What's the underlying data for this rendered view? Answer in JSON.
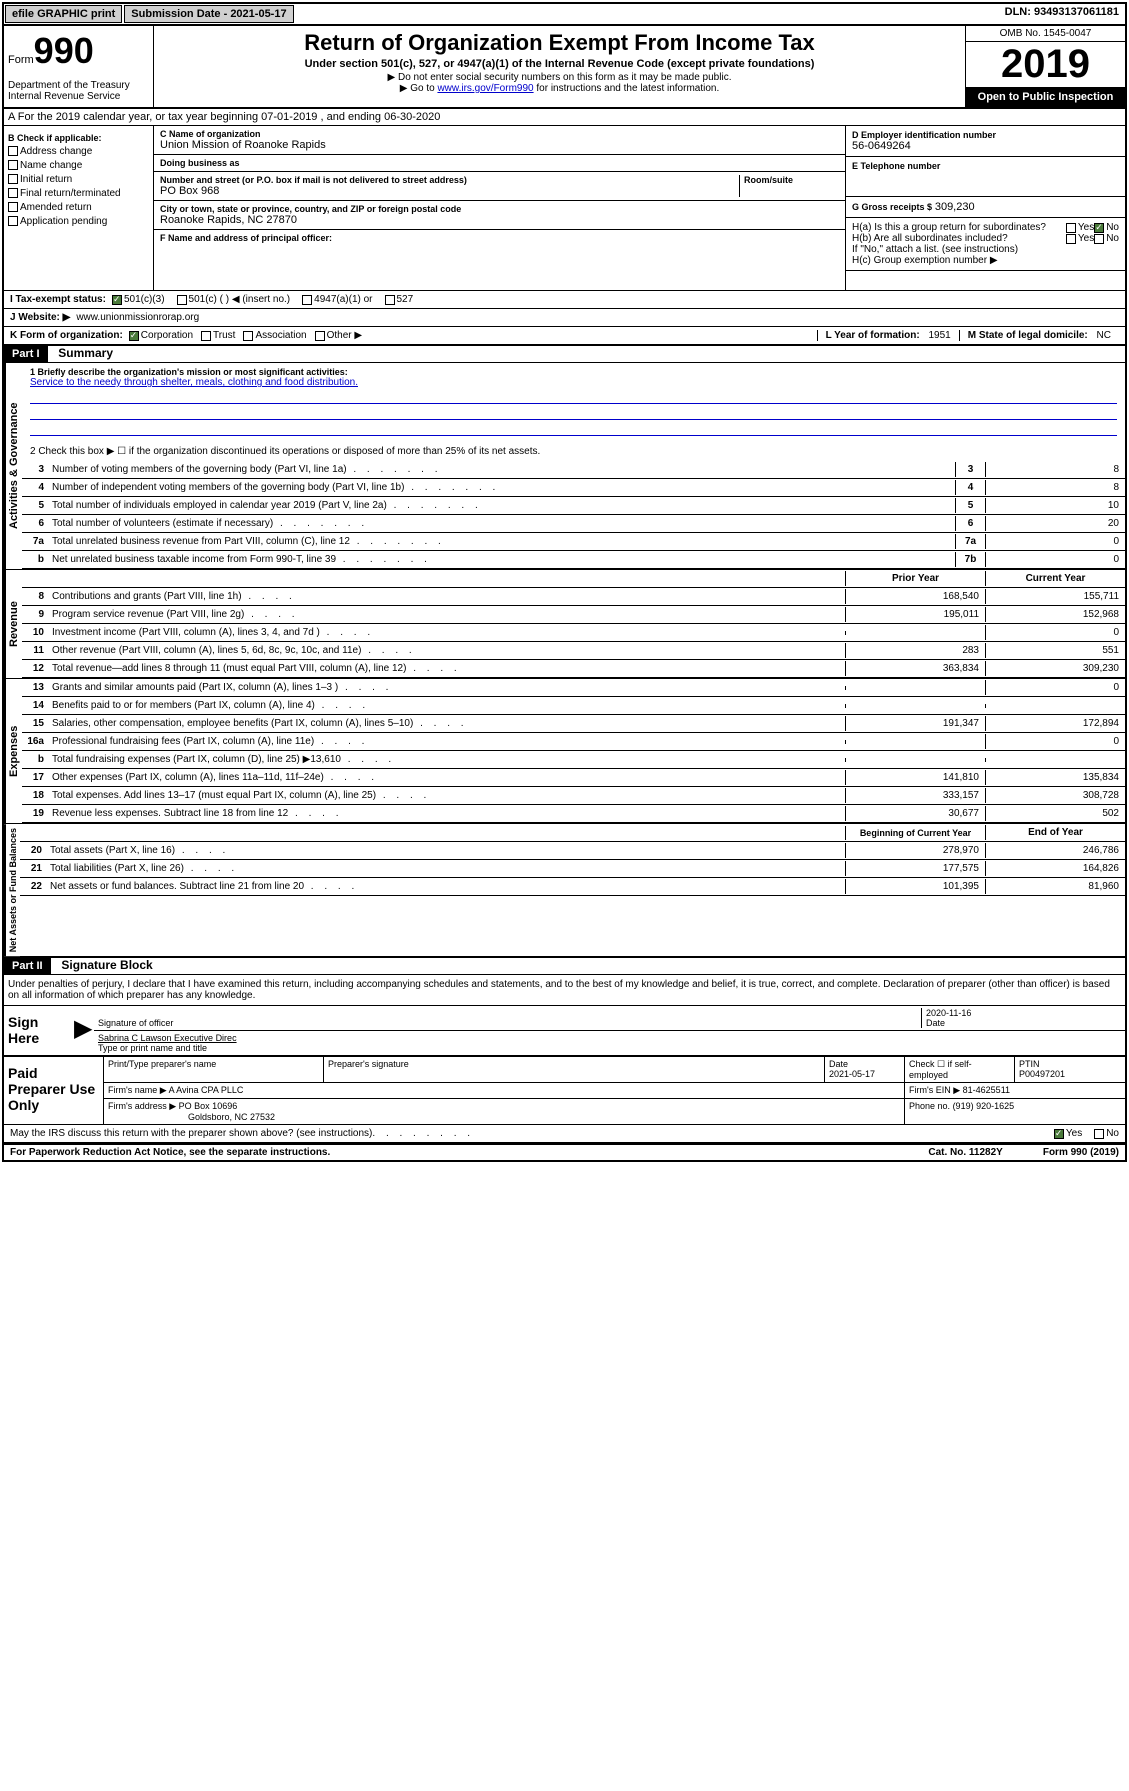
{
  "topbar": {
    "efile": "efile GRAPHIC print",
    "submission": "Submission Date - 2021-05-17",
    "dln": "DLN: 93493137061181"
  },
  "header": {
    "form_prefix": "Form",
    "form_number": "990",
    "dept": "Department of the Treasury\nInternal Revenue Service",
    "title": "Return of Organization Exempt From Income Tax",
    "subtitle": "Under section 501(c), 527, or 4947(a)(1) of the Internal Revenue Code (except private foundations)",
    "note1": "▶ Do not enter social security numbers on this form as it may be made public.",
    "note2a": "▶ Go to ",
    "note2_link": "www.irs.gov/Form990",
    "note2b": " for instructions and the latest information.",
    "omb": "OMB No. 1545-0047",
    "year": "2019",
    "inspection": "Open to Public Inspection"
  },
  "section_a": "A For the 2019 calendar year, or tax year beginning 07-01-2019    , and ending 06-30-2020",
  "section_b": {
    "label": "B Check if applicable:",
    "opts": [
      "Address change",
      "Name change",
      "Initial return",
      "Final return/terminated",
      "Amended return",
      "Application pending"
    ]
  },
  "section_c": {
    "name_label": "C Name of organization",
    "name": "Union Mission of Roanoke Rapids",
    "dba_label": "Doing business as",
    "dba": "",
    "addr_label": "Number and street (or P.O. box if mail is not delivered to street address)",
    "room_label": "Room/suite",
    "addr": "PO Box 968",
    "city_label": "City or town, state or province, country, and ZIP or foreign postal code",
    "city": "Roanoke Rapids, NC  27870"
  },
  "section_d": {
    "label": "D Employer identification number",
    "value": "56-0649264"
  },
  "section_e": {
    "label": "E Telephone number",
    "value": ""
  },
  "section_g": {
    "label": "G Gross receipts $",
    "value": "309,230"
  },
  "section_f": {
    "label": "F  Name and address of principal officer:",
    "value": ""
  },
  "section_h": {
    "a": "H(a)  Is this a group return for subordinates?",
    "b": "H(b)  Are all subordinates included?",
    "b_note": "If \"No,\" attach a list. (see instructions)",
    "c": "H(c)  Group exemption number ▶",
    "yes": "Yes",
    "no": "No"
  },
  "section_i": {
    "label": "I   Tax-exempt status:",
    "opts": [
      "501(c)(3)",
      "501(c) (  ) ◀ (insert no.)",
      "4947(a)(1) or",
      "527"
    ]
  },
  "section_j": {
    "label": "J   Website: ▶",
    "value": "www.unionmissionrorap.org"
  },
  "section_k": {
    "label": "K Form of organization:",
    "opts": [
      "Corporation",
      "Trust",
      "Association",
      "Other ▶"
    ]
  },
  "section_l": {
    "label": "L Year of formation:",
    "value": "1951"
  },
  "section_m": {
    "label": "M State of legal domicile:",
    "value": "NC"
  },
  "part1": {
    "header": "Part I",
    "title": "Summary",
    "mission_label": "1  Briefly describe the organization's mission or most significant activities:",
    "mission": "Service to the needy through shelter, meals, clothing and food distribution.",
    "line2": "2   Check this box ▶ ☐  if the organization discontinued its operations or disposed of more than 25% of its net assets.",
    "vert_gov": "Activities & Governance",
    "vert_rev": "Revenue",
    "vert_exp": "Expenses",
    "vert_net": "Net Assets or Fund Balances",
    "gov_rows": [
      {
        "n": "3",
        "t": "Number of voting members of the governing body (Part VI, line 1a)",
        "c": "3",
        "v": "8"
      },
      {
        "n": "4",
        "t": "Number of independent voting members of the governing body (Part VI, line 1b)",
        "c": "4",
        "v": "8"
      },
      {
        "n": "5",
        "t": "Total number of individuals employed in calendar year 2019 (Part V, line 2a)",
        "c": "5",
        "v": "10"
      },
      {
        "n": "6",
        "t": "Total number of volunteers (estimate if necessary)",
        "c": "6",
        "v": "20"
      },
      {
        "n": "7a",
        "t": "Total unrelated business revenue from Part VIII, column (C), line 12",
        "c": "7a",
        "v": "0"
      },
      {
        "n": "b",
        "t": "Net unrelated business taxable income from Form 990-T, line 39",
        "c": "7b",
        "v": "0"
      }
    ],
    "prior_year": "Prior Year",
    "current_year": "Current Year",
    "rev_rows": [
      {
        "n": "8",
        "t": "Contributions and grants (Part VIII, line 1h)",
        "p": "168,540",
        "c": "155,711"
      },
      {
        "n": "9",
        "t": "Program service revenue (Part VIII, line 2g)",
        "p": "195,011",
        "c": "152,968"
      },
      {
        "n": "10",
        "t": "Investment income (Part VIII, column (A), lines 3, 4, and 7d )",
        "p": "",
        "c": "0"
      },
      {
        "n": "11",
        "t": "Other revenue (Part VIII, column (A), lines 5, 6d, 8c, 9c, 10c, and 11e)",
        "p": "283",
        "c": "551"
      },
      {
        "n": "12",
        "t": "Total revenue—add lines 8 through 11 (must equal Part VIII, column (A), line 12)",
        "p": "363,834",
        "c": "309,230"
      }
    ],
    "exp_rows": [
      {
        "n": "13",
        "t": "Grants and similar amounts paid (Part IX, column (A), lines 1–3 )",
        "p": "",
        "c": "0"
      },
      {
        "n": "14",
        "t": "Benefits paid to or for members (Part IX, column (A), line 4)",
        "p": "",
        "c": ""
      },
      {
        "n": "15",
        "t": "Salaries, other compensation, employee benefits (Part IX, column (A), lines 5–10)",
        "p": "191,347",
        "c": "172,894"
      },
      {
        "n": "16a",
        "t": "Professional fundraising fees (Part IX, column (A), line 11e)",
        "p": "",
        "c": "0"
      },
      {
        "n": "b",
        "t": "Total fundraising expenses (Part IX, column (D), line 25) ▶13,610",
        "p": "",
        "c": ""
      },
      {
        "n": "17",
        "t": "Other expenses (Part IX, column (A), lines 11a–11d, 11f–24e)",
        "p": "141,810",
        "c": "135,834"
      },
      {
        "n": "18",
        "t": "Total expenses. Add lines 13–17 (must equal Part IX, column (A), line 25)",
        "p": "333,157",
        "c": "308,728"
      },
      {
        "n": "19",
        "t": "Revenue less expenses. Subtract line 18 from line 12",
        "p": "30,677",
        "c": "502"
      }
    ],
    "beg_year": "Beginning of Current Year",
    "end_year": "End of Year",
    "net_rows": [
      {
        "n": "20",
        "t": "Total assets (Part X, line 16)",
        "p": "278,970",
        "c": "246,786"
      },
      {
        "n": "21",
        "t": "Total liabilities (Part X, line 26)",
        "p": "177,575",
        "c": "164,826"
      },
      {
        "n": "22",
        "t": "Net assets or fund balances. Subtract line 21 from line 20",
        "p": "101,395",
        "c": "81,960"
      }
    ]
  },
  "part2": {
    "header": "Part II",
    "title": "Signature Block",
    "perjury": "Under penalties of perjury, I declare that I have examined this return, including accompanying schedules and statements, and to the best of my knowledge and belief, it is true, correct, and complete. Declaration of preparer (other than officer) is based on all information of which preparer has any knowledge.",
    "sign_here": "Sign Here",
    "date": "2020-11-16",
    "sig_officer": "Signature of officer",
    "date_label": "Date",
    "officer_name": "Sabrina C Lawson  Executive Direc",
    "type_name": "Type or print name and title",
    "paid_prep": "Paid Preparer Use Only",
    "prep_name_label": "Print/Type preparer's name",
    "prep_sig_label": "Preparer's signature",
    "prep_date_label": "Date",
    "prep_date": "2021-05-17",
    "check_self": "Check ☐ if self-employed",
    "ptin_label": "PTIN",
    "ptin": "P00497201",
    "firm_name_label": "Firm's name   ▶",
    "firm_name": "A Avina CPA PLLC",
    "firm_ein_label": "Firm's EIN ▶",
    "firm_ein": "81-4625511",
    "firm_addr_label": "Firm's address ▶",
    "firm_addr": "PO Box 10696",
    "firm_city": "Goldsboro, NC  27532",
    "phone_label": "Phone no.",
    "phone": "(919) 920-1625",
    "discuss": "May the IRS discuss this return with the preparer shown above? (see instructions)",
    "yes": "Yes",
    "no": "No"
  },
  "footer": {
    "left": "For Paperwork Reduction Act Notice, see the separate instructions.",
    "mid": "Cat. No. 11282Y",
    "right": "Form 990 (2019)"
  }
}
